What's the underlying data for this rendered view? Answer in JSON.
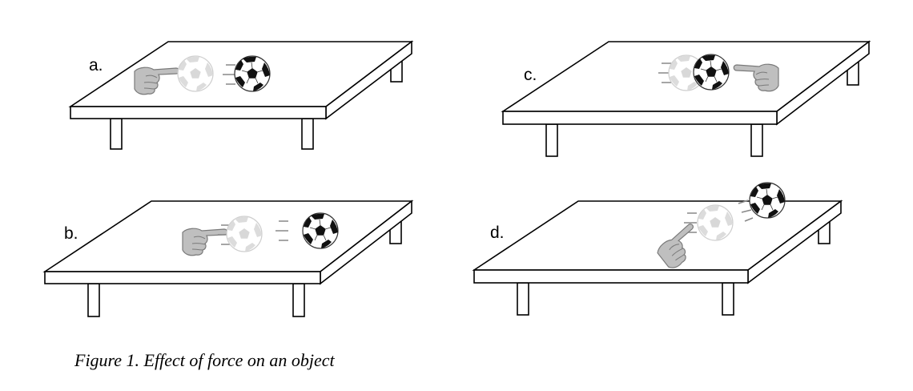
{
  "panels": [
    {
      "id": "a",
      "label": "a."
    },
    {
      "id": "b",
      "label": "b."
    },
    {
      "id": "c",
      "label": "c."
    },
    {
      "id": "d",
      "label": "d."
    }
  ],
  "caption": "Figure 1. Effect of force on an object"
}
